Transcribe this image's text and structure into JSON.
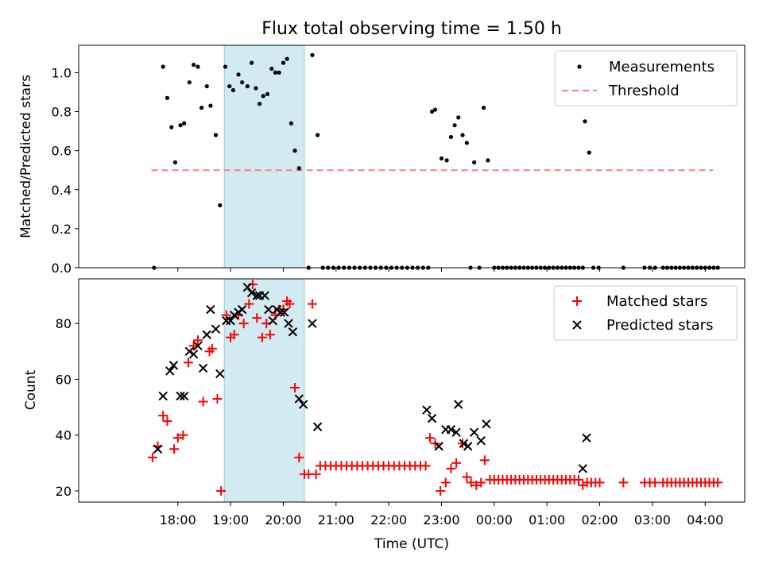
{
  "chart_data": {
    "title": "Flux total observing time = 1.50 h",
    "xlabel": "Time (UTC)",
    "x_unit": "hours since 17:00 UTC",
    "xlim": [
      -0.88,
      11.75
    ],
    "x_tick_values": [
      1,
      2,
      3,
      4,
      5,
      6,
      7,
      8,
      9,
      10,
      11
    ],
    "x_tick_labels": [
      "18:00",
      "19:00",
      "20:00",
      "21:00",
      "22:00",
      "23:00",
      "00:00",
      "01:00",
      "02:00",
      "03:00",
      "04:00"
    ],
    "highlight_span": {
      "x_start": 1.88,
      "x_end": 3.4,
      "color": "#add8e6"
    },
    "top": {
      "type": "scatter",
      "ylabel": "Matched/Predicted stars",
      "ylim": [
        0,
        1.14
      ],
      "y_ticks": [
        0.0,
        0.2,
        0.4,
        0.6,
        0.8,
        1.0
      ],
      "y_tick_labels": [
        "0.0",
        "0.2",
        "0.4",
        "0.6",
        "0.8",
        "1.0"
      ],
      "legend_position": "upper-right",
      "legend": [
        {
          "label": "Measurements",
          "marker": "dot",
          "color": "#000000"
        },
        {
          "label": "Threshold",
          "marker": "dashed-line",
          "color": "#ff8080"
        }
      ],
      "threshold": {
        "value": 0.5,
        "x_start": 0.5,
        "x_end": 11.15,
        "color": "#ff8080"
      },
      "measurements": [
        [
          0.55,
          0.0
        ],
        [
          0.72,
          1.03
        ],
        [
          0.8,
          0.87
        ],
        [
          0.88,
          0.72
        ],
        [
          0.95,
          0.54
        ],
        [
          1.05,
          0.73
        ],
        [
          1.12,
          0.74
        ],
        [
          1.22,
          0.95
        ],
        [
          1.3,
          1.04
        ],
        [
          1.38,
          1.03
        ],
        [
          1.45,
          0.82
        ],
        [
          1.55,
          0.93
        ],
        [
          1.62,
          0.83
        ],
        [
          1.72,
          0.68
        ],
        [
          1.8,
          0.32
        ],
        [
          1.9,
          1.03
        ],
        [
          1.98,
          0.93
        ],
        [
          2.05,
          0.91
        ],
        [
          2.15,
          0.99
        ],
        [
          2.22,
          0.95
        ],
        [
          2.32,
          0.93
        ],
        [
          2.4,
          1.05
        ],
        [
          2.48,
          0.92
        ],
        [
          2.55,
          0.84
        ],
        [
          2.62,
          0.88
        ],
        [
          2.7,
          0.89
        ],
        [
          2.78,
          1.02
        ],
        [
          2.85,
          1.0
        ],
        [
          2.92,
          1.0
        ],
        [
          3.0,
          1.05
        ],
        [
          3.07,
          1.07
        ],
        [
          3.15,
          0.74
        ],
        [
          3.22,
          0.6
        ],
        [
          3.3,
          0.51
        ],
        [
          3.48,
          0.0
        ],
        [
          3.55,
          1.09
        ],
        [
          3.65,
          0.68
        ],
        [
          3.75,
          0.0
        ],
        [
          3.85,
          0.0
        ],
        [
          3.95,
          0.0
        ],
        [
          4.05,
          0.0
        ],
        [
          4.15,
          0.0
        ],
        [
          4.25,
          0.0
        ],
        [
          4.35,
          0.0
        ],
        [
          4.45,
          0.0
        ],
        [
          4.55,
          0.0
        ],
        [
          4.65,
          0.0
        ],
        [
          4.75,
          0.0
        ],
        [
          4.85,
          0.0
        ],
        [
          4.95,
          0.0
        ],
        [
          5.05,
          0.0
        ],
        [
          5.15,
          0.0
        ],
        [
          5.25,
          0.0
        ],
        [
          5.35,
          0.0
        ],
        [
          5.45,
          0.0
        ],
        [
          5.55,
          0.0
        ],
        [
          5.65,
          0.0
        ],
        [
          5.75,
          0.0
        ],
        [
          5.82,
          0.8
        ],
        [
          5.88,
          0.81
        ],
        [
          6.0,
          0.56
        ],
        [
          6.1,
          0.55
        ],
        [
          6.18,
          0.67
        ],
        [
          6.25,
          0.73
        ],
        [
          6.32,
          0.77
        ],
        [
          6.4,
          0.68
        ],
        [
          6.48,
          0.64
        ],
        [
          6.55,
          0.0
        ],
        [
          6.62,
          0.54
        ],
        [
          6.72,
          0.0
        ],
        [
          6.8,
          0.82
        ],
        [
          6.88,
          0.55
        ],
        [
          7.0,
          0.0
        ],
        [
          7.08,
          0.0
        ],
        [
          7.16,
          0.0
        ],
        [
          7.24,
          0.0
        ],
        [
          7.32,
          0.0
        ],
        [
          7.4,
          0.0
        ],
        [
          7.48,
          0.0
        ],
        [
          7.56,
          0.0
        ],
        [
          7.64,
          0.0
        ],
        [
          7.72,
          0.0
        ],
        [
          7.8,
          0.0
        ],
        [
          7.88,
          0.0
        ],
        [
          7.96,
          0.0
        ],
        [
          8.04,
          0.0
        ],
        [
          8.12,
          0.0
        ],
        [
          8.2,
          0.0
        ],
        [
          8.28,
          0.0
        ],
        [
          8.36,
          0.0
        ],
        [
          8.44,
          0.0
        ],
        [
          8.52,
          0.0
        ],
        [
          8.6,
          0.0
        ],
        [
          8.68,
          0.0
        ],
        [
          8.72,
          0.75
        ],
        [
          8.8,
          0.59
        ],
        [
          8.88,
          0.0
        ],
        [
          8.98,
          0.0
        ],
        [
          9.45,
          0.0
        ],
        [
          9.85,
          0.0
        ],
        [
          9.95,
          0.0
        ],
        [
          10.05,
          0.0
        ],
        [
          10.2,
          0.0
        ],
        [
          10.28,
          0.0
        ],
        [
          10.36,
          0.0
        ],
        [
          10.44,
          0.0
        ],
        [
          10.52,
          0.0
        ],
        [
          10.6,
          0.0
        ],
        [
          10.68,
          0.0
        ],
        [
          10.76,
          0.0
        ],
        [
          10.84,
          0.0
        ],
        [
          10.92,
          0.0
        ],
        [
          11.0,
          0.0
        ],
        [
          11.08,
          0.0
        ],
        [
          11.16,
          0.0
        ],
        [
          11.24,
          0.0
        ]
      ]
    },
    "bottom": {
      "type": "scatter",
      "ylabel": "Count",
      "ylim": [
        16,
        96
      ],
      "y_ticks": [
        20,
        40,
        60,
        80
      ],
      "y_tick_labels": [
        "20",
        "40",
        "60",
        "80"
      ],
      "legend_position": "upper-right",
      "series": [
        {
          "name": "Matched stars",
          "marker": "plus",
          "color": "#ff0000",
          "points": [
            [
              0.52,
              32
            ],
            [
              0.62,
              36
            ],
            [
              0.72,
              47
            ],
            [
              0.8,
              45
            ],
            [
              0.93,
              35
            ],
            [
              1.0,
              39
            ],
            [
              1.1,
              40
            ],
            [
              1.2,
              66
            ],
            [
              1.3,
              72
            ],
            [
              1.38,
              74
            ],
            [
              1.48,
              52
            ],
            [
              1.6,
              70
            ],
            [
              1.65,
              71
            ],
            [
              1.75,
              53
            ],
            [
              1.82,
              20
            ],
            [
              1.92,
              83
            ],
            [
              2.0,
              75
            ],
            [
              2.07,
              76
            ],
            [
              2.15,
              83
            ],
            [
              2.25,
              80
            ],
            [
              2.35,
              87
            ],
            [
              2.42,
              94
            ],
            [
              2.5,
              82
            ],
            [
              2.6,
              75
            ],
            [
              2.68,
              80
            ],
            [
              2.75,
              76
            ],
            [
              2.85,
              83
            ],
            [
              2.92,
              85
            ],
            [
              3.0,
              85
            ],
            [
              3.07,
              88
            ],
            [
              3.12,
              87
            ],
            [
              3.22,
              57
            ],
            [
              3.3,
              32
            ],
            [
              3.4,
              26
            ],
            [
              3.48,
              26
            ],
            [
              3.55,
              87
            ],
            [
              3.62,
              26
            ],
            [
              3.7,
              29
            ],
            [
              3.8,
              29
            ],
            [
              3.9,
              29
            ],
            [
              4.0,
              29
            ],
            [
              4.1,
              29
            ],
            [
              4.2,
              29
            ],
            [
              4.3,
              29
            ],
            [
              4.4,
              29
            ],
            [
              4.5,
              29
            ],
            [
              4.6,
              29
            ],
            [
              4.7,
              29
            ],
            [
              4.8,
              29
            ],
            [
              4.9,
              29
            ],
            [
              5.0,
              29
            ],
            [
              5.1,
              29
            ],
            [
              5.2,
              29
            ],
            [
              5.3,
              29
            ],
            [
              5.4,
              29
            ],
            [
              5.5,
              29
            ],
            [
              5.6,
              29
            ],
            [
              5.7,
              29
            ],
            [
              5.78,
              39
            ],
            [
              5.88,
              37
            ],
            [
              5.98,
              20
            ],
            [
              6.08,
              23
            ],
            [
              6.18,
              28
            ],
            [
              6.28,
              30
            ],
            [
              6.4,
              37
            ],
            [
              6.48,
              25
            ],
            [
              6.56,
              23
            ],
            [
              6.66,
              22
            ],
            [
              6.75,
              23
            ],
            [
              6.82,
              31
            ],
            [
              6.92,
              24
            ],
            [
              7.0,
              24
            ],
            [
              7.08,
              24
            ],
            [
              7.16,
              24
            ],
            [
              7.24,
              24
            ],
            [
              7.32,
              24
            ],
            [
              7.4,
              24
            ],
            [
              7.48,
              24
            ],
            [
              7.56,
              24
            ],
            [
              7.64,
              24
            ],
            [
              7.72,
              24
            ],
            [
              7.8,
              24
            ],
            [
              7.88,
              24
            ],
            [
              7.96,
              24
            ],
            [
              8.04,
              24
            ],
            [
              8.12,
              24
            ],
            [
              8.2,
              24
            ],
            [
              8.28,
              24
            ],
            [
              8.36,
              24
            ],
            [
              8.44,
              24
            ],
            [
              8.52,
              24
            ],
            [
              8.6,
              24
            ],
            [
              8.68,
              22
            ],
            [
              8.76,
              23
            ],
            [
              8.84,
              23
            ],
            [
              8.92,
              23
            ],
            [
              9.0,
              23
            ],
            [
              9.45,
              23
            ],
            [
              9.85,
              23
            ],
            [
              9.95,
              23
            ],
            [
              10.05,
              23
            ],
            [
              10.2,
              23
            ],
            [
              10.28,
              23
            ],
            [
              10.36,
              23
            ],
            [
              10.44,
              23
            ],
            [
              10.52,
              23
            ],
            [
              10.6,
              23
            ],
            [
              10.68,
              23
            ],
            [
              10.76,
              23
            ],
            [
              10.84,
              23
            ],
            [
              10.92,
              23
            ],
            [
              11.0,
              23
            ],
            [
              11.08,
              23
            ],
            [
              11.16,
              23
            ],
            [
              11.24,
              23
            ]
          ]
        },
        {
          "name": "Predicted stars",
          "marker": "x",
          "color": "#000000",
          "points": [
            [
              0.62,
              35
            ],
            [
              0.72,
              54
            ],
            [
              0.85,
              63
            ],
            [
              0.92,
              65
            ],
            [
              1.05,
              54
            ],
            [
              1.12,
              54
            ],
            [
              1.22,
              70
            ],
            [
              1.3,
              69
            ],
            [
              1.38,
              72
            ],
            [
              1.48,
              64
            ],
            [
              1.55,
              76
            ],
            [
              1.62,
              85
            ],
            [
              1.72,
              78
            ],
            [
              1.8,
              62
            ],
            [
              1.92,
              81
            ],
            [
              2.0,
              81
            ],
            [
              2.07,
              83
            ],
            [
              2.15,
              84
            ],
            [
              2.22,
              85
            ],
            [
              2.32,
              93
            ],
            [
              2.4,
              91
            ],
            [
              2.5,
              90
            ],
            [
              2.55,
              90
            ],
            [
              2.65,
              90
            ],
            [
              2.72,
              85
            ],
            [
              2.8,
              81
            ],
            [
              2.88,
              85
            ],
            [
              2.95,
              84
            ],
            [
              3.02,
              84
            ],
            [
              3.1,
              80
            ],
            [
              3.18,
              77
            ],
            [
              3.3,
              53
            ],
            [
              3.38,
              51
            ],
            [
              3.55,
              80
            ],
            [
              3.65,
              43
            ],
            [
              5.72,
              49
            ],
            [
              5.82,
              46
            ],
            [
              5.95,
              36
            ],
            [
              6.08,
              42
            ],
            [
              6.18,
              42
            ],
            [
              6.28,
              41
            ],
            [
              6.32,
              51
            ],
            [
              6.42,
              37
            ],
            [
              6.5,
              36
            ],
            [
              6.62,
              41
            ],
            [
              6.75,
              38
            ],
            [
              6.85,
              44
            ],
            [
              8.68,
              28
            ],
            [
              8.75,
              39
            ]
          ]
        }
      ]
    }
  }
}
